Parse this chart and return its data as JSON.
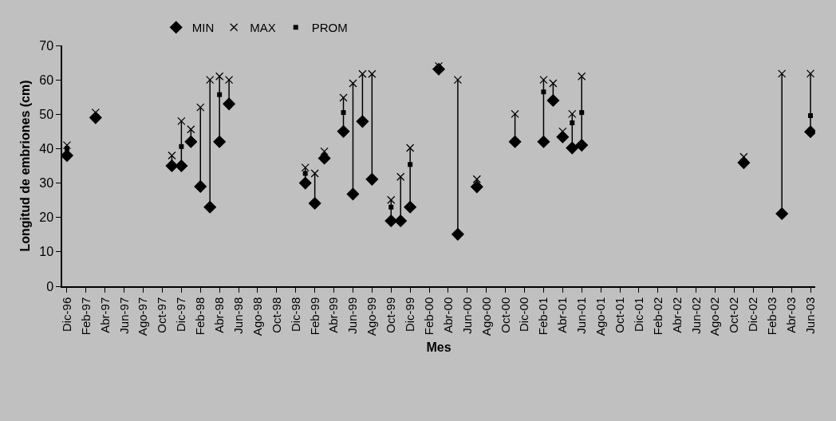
{
  "chart_data": {
    "type": "scatter",
    "xlabel": "Mes",
    "ylabel": "Longitud de embriones (cm)",
    "categories": [
      "Dic-96",
      null,
      "Feb-97",
      null,
      "Abr-97",
      null,
      "Jun-97",
      null,
      "Ago-97",
      null,
      "Oct-97",
      null,
      "Dic-97",
      null,
      "Feb-98",
      null,
      "Abr-98",
      null,
      "Jun-98",
      null,
      "Ago-98",
      null,
      "Oct-98",
      null,
      "Dic-98",
      null,
      "Feb-99",
      null,
      "Abr-99",
      null,
      "Jun-99",
      null,
      "Ago-99",
      null,
      "Oct-99",
      null,
      "Dic-99",
      null,
      "Feb-00",
      null,
      "Abr-00",
      null,
      "Jun-00",
      null,
      "Ago-00",
      null,
      "Oct-00",
      null,
      "Dic-00",
      null,
      "Feb-01",
      null,
      "Abr-01",
      null,
      "Jun-01",
      null,
      "Ago-01",
      null,
      "Oct-01",
      null,
      "Dic-01",
      null,
      "Feb-02",
      null,
      "Abr-02",
      null,
      "Jun-02",
      null,
      "Ago-02",
      null,
      "Oct-02",
      null,
      "Dic-02",
      null,
      "Feb-03",
      null,
      "Abr-03",
      null,
      "Jun-03"
    ],
    "series": [
      {
        "name": "MIN",
        "color": "#000000",
        "marker": "diamond",
        "values": [
          38,
          null,
          null,
          49,
          null,
          null,
          null,
          null,
          null,
          null,
          null,
          35,
          35,
          42,
          29,
          23,
          42,
          53,
          null,
          null,
          null,
          null,
          null,
          null,
          null,
          30,
          24.1,
          37.2,
          null,
          45,
          26.8,
          47.9,
          31.1,
          null,
          19,
          19,
          23,
          null,
          null,
          63.1,
          null,
          15.1,
          null,
          28.9,
          null,
          null,
          null,
          42,
          null,
          null,
          42,
          54,
          43.4,
          40.2,
          41,
          null,
          null,
          null,
          null,
          null,
          null,
          null,
          null,
          null,
          null,
          null,
          null,
          null,
          null,
          null,
          null,
          35.9,
          null,
          null,
          null,
          21.1,
          null,
          null,
          44.9
        ]
      },
      {
        "name": "MAX",
        "color": "#000000",
        "marker": "cross",
        "values": [
          41,
          null,
          null,
          50.5,
          null,
          null,
          null,
          null,
          null,
          null,
          null,
          38,
          48,
          45.6,
          52,
          60,
          61,
          60,
          null,
          null,
          null,
          null,
          null,
          null,
          null,
          34.5,
          32.8,
          39.2,
          null,
          54.8,
          59,
          61.7,
          61.7,
          null,
          25.1,
          31.8,
          40.2,
          null,
          null,
          64,
          null,
          60,
          null,
          31.1,
          null,
          null,
          null,
          50.1,
          null,
          null,
          60,
          59,
          45,
          50.1,
          61,
          null,
          null,
          null,
          null,
          null,
          null,
          null,
          null,
          null,
          null,
          null,
          null,
          null,
          null,
          null,
          null,
          37.6,
          null,
          null,
          null,
          61.8,
          null,
          null,
          61.8
        ]
      },
      {
        "name": "PROM",
        "color": "#000000",
        "marker": "square",
        "values": [
          40,
          null,
          null,
          null,
          null,
          null,
          null,
          null,
          null,
          null,
          null,
          null,
          40.6,
          null,
          null,
          null,
          55.7,
          null,
          null,
          null,
          null,
          null,
          null,
          null,
          null,
          32.8,
          null,
          null,
          null,
          50.5,
          null,
          null,
          null,
          null,
          23,
          null,
          35.4,
          null,
          null,
          null,
          null,
          null,
          null,
          null,
          null,
          null,
          null,
          null,
          null,
          null,
          56.5,
          null,
          null,
          47.5,
          50.5,
          null,
          null,
          null,
          null,
          null,
          null,
          null,
          null,
          null,
          null,
          null,
          null,
          null,
          null,
          null,
          null,
          null,
          null,
          null,
          null,
          null,
          null,
          null,
          49.6
        ]
      }
    ],
    "ylim": [
      0,
      70
    ],
    "yticks": [
      0,
      10,
      20,
      30,
      40,
      50,
      60,
      70
    ],
    "grid": false,
    "legend": "top"
  }
}
